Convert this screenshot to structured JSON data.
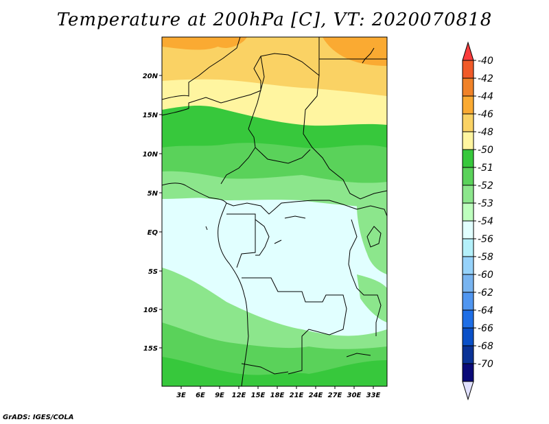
{
  "title": "Temperature at 200hPa [C], VT: 2020070818",
  "credit": "GrADS: IGES/COLA",
  "map": {
    "lat_labels": [
      "20N",
      "15N",
      "10N",
      "5N",
      "EQ",
      "5S",
      "10S",
      "15S"
    ],
    "lon_labels": [
      "3E",
      "6E",
      "9E",
      "12E",
      "15E",
      "18E",
      "21E",
      "24E",
      "27E",
      "30E",
      "33E"
    ]
  },
  "colorbar": {
    "labels": [
      "-40",
      "-42",
      "-44",
      "-46",
      "-48",
      "-50",
      "-51",
      "-52",
      "-53",
      "-54",
      "-56",
      "-58",
      "-60",
      "-62",
      "-64",
      "-66",
      "-68",
      "-70"
    ],
    "colors": [
      "#fa3c3c",
      "#f05a28",
      "#f08228",
      "#faaa32",
      "#fad264",
      "#fff5a0",
      "#37c83c",
      "#5ad25a",
      "#8ce68c",
      "#beffbe",
      "#e1ffff",
      "#b4f0fa",
      "#96d2fa",
      "#78b4f0",
      "#5096f0",
      "#1e6ee6",
      "#0a50c8",
      "#0a3296",
      "#0a0a78",
      "#e1e1ff"
    ]
  }
}
